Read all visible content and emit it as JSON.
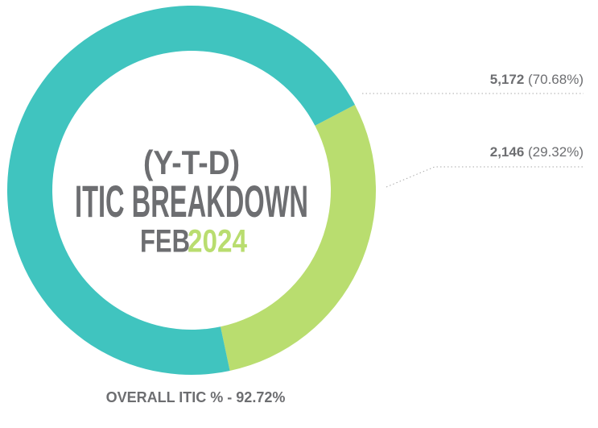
{
  "chart_data": {
    "type": "donut",
    "title_lines": [
      "(Y-T-D)",
      "ITIC BREAKDOWN"
    ],
    "month": "FEB",
    "year": "2024",
    "categories": [
      null,
      null
    ],
    "values": [
      5172,
      2146
    ],
    "value_labels": [
      "5,172",
      "2,146"
    ],
    "percents": [
      70.68,
      29.32
    ],
    "percent_labels": [
      "(70.68%)",
      "(29.32%)"
    ],
    "colors": [
      "#40c4bf",
      "#b9dd6f"
    ],
    "footer": "OVERALL ITIC % - 92.72%"
  }
}
